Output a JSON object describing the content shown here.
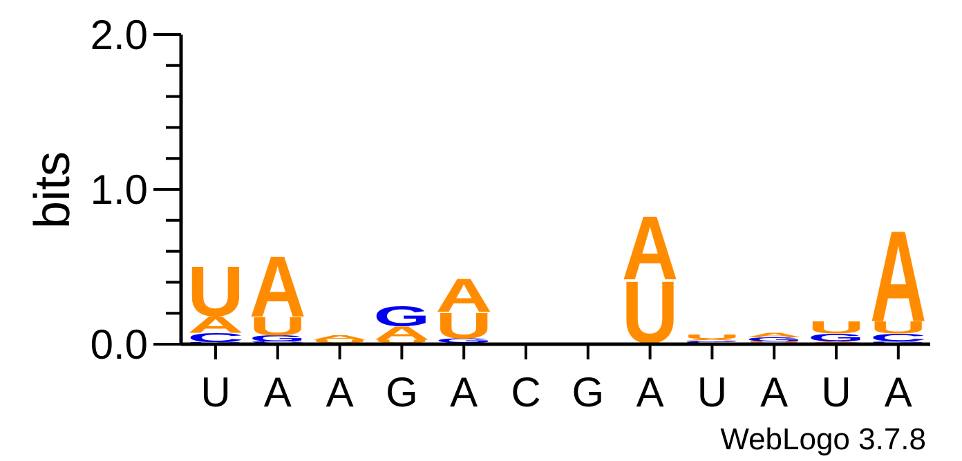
{
  "chart_data": {
    "type": "sequence-logo",
    "ylabel": "bits",
    "ylim": [
      0,
      2.0
    ],
    "y_ticks": [
      "0.0",
      "1.0",
      "2.0"
    ],
    "y_tick_values": [
      0,
      1,
      2
    ],
    "y_minor_step": 0.2,
    "x_labels": [
      "U",
      "A",
      "A",
      "G",
      "A",
      "C",
      "G",
      "A",
      "U",
      "A",
      "U",
      "A"
    ],
    "colors": {
      "A": "#ff8c00",
      "U": "#ff8c00",
      "G": "#0000ee",
      "C": "#0000ee"
    },
    "stacks": [
      [
        {
          "letter": "G",
          "height": 0.005
        },
        {
          "letter": "C",
          "height": 0.06
        },
        {
          "letter": "A",
          "height": 0.11
        },
        {
          "letter": "U",
          "height": 0.33
        }
      ],
      [
        {
          "letter": "C",
          "height": 0.01
        },
        {
          "letter": "G",
          "height": 0.04
        },
        {
          "letter": "U",
          "height": 0.12
        },
        {
          "letter": "A",
          "height": 0.4
        }
      ],
      [
        {
          "letter": "U",
          "height": 0.02
        },
        {
          "letter": "A",
          "height": 0.03
        }
      ],
      [
        {
          "letter": "U",
          "height": 0.02
        },
        {
          "letter": "A",
          "height": 0.09
        },
        {
          "letter": "G",
          "height": 0.13
        }
      ],
      [
        {
          "letter": "G",
          "height": 0.03
        },
        {
          "letter": "U",
          "height": 0.17
        },
        {
          "letter": "A",
          "height": 0.22
        }
      ],
      [],
      [],
      [
        {
          "letter": "U",
          "height": 0.41
        },
        {
          "letter": "A",
          "height": 0.42
        }
      ],
      [
        {
          "letter": "C",
          "height": 0.005
        },
        {
          "letter": "G",
          "height": 0.01
        },
        {
          "letter": "A",
          "height": 0.01
        },
        {
          "letter": "U",
          "height": 0.03
        }
      ],
      [
        {
          "letter": "U",
          "height": 0.01
        },
        {
          "letter": "G",
          "height": 0.025
        },
        {
          "letter": "A",
          "height": 0.03
        }
      ],
      [
        {
          "letter": "A",
          "height": 0.01
        },
        {
          "letter": "G",
          "height": 0.05
        },
        {
          "letter": "U",
          "height": 0.08
        }
      ],
      [
        {
          "letter": "G",
          "height": 0.01
        },
        {
          "letter": "C",
          "height": 0.05
        },
        {
          "letter": "U",
          "height": 0.08
        },
        {
          "letter": "A",
          "height": 0.6
        }
      ]
    ]
  },
  "footer": {
    "credit": "WebLogo 3.7.8"
  }
}
